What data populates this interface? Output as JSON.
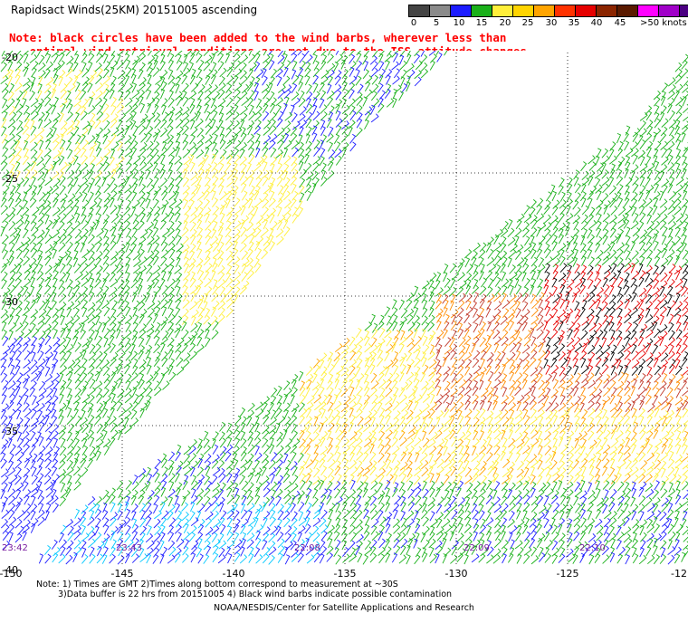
{
  "header": {
    "title": "Rapidsact Winds(25KM) 20151005 ascending",
    "note_line1": "Note: black circles have been added to the wind barbs, wherever less than",
    "note_line2": "   optimal wind retrieval conditions are met due to the ISS attitude changes."
  },
  "legend": {
    "colors": [
      "#444444",
      "#8a8a8a",
      "#1c1cff",
      "#1ab01a",
      "#ffef3a",
      "#ffd400",
      "#ffa400",
      "#ff3200",
      "#e60000",
      "#8b2500",
      "#5a1a00",
      "#ff00ff",
      "#a000c8",
      "#4b0082"
    ],
    "labels": [
      "0",
      "5",
      "10",
      "15",
      "20",
      "25",
      "30",
      "35",
      "40",
      "45",
      ">50 knots"
    ]
  },
  "map": {
    "lat_labels": [
      "-20",
      "-25",
      "-30",
      "-35",
      "-40"
    ],
    "lon_labels": [
      "-150",
      "-145",
      "-140",
      "-135",
      "-130",
      "-125",
      "-12"
    ],
    "times": [
      "23:42",
      "23:43",
      "22:08",
      "22:09",
      "22:10"
    ]
  },
  "footer": {
    "line1": "Note: 1) Times are GMT 2)Times along bottom correspond to measurement at ~30S",
    "line2": "3)Data buffer is 22 hrs from 20151005 4) Black wind barbs indicate possible contamination",
    "line3": "NOAA/NESDIS/Center for Satellite Applications and Research"
  }
}
